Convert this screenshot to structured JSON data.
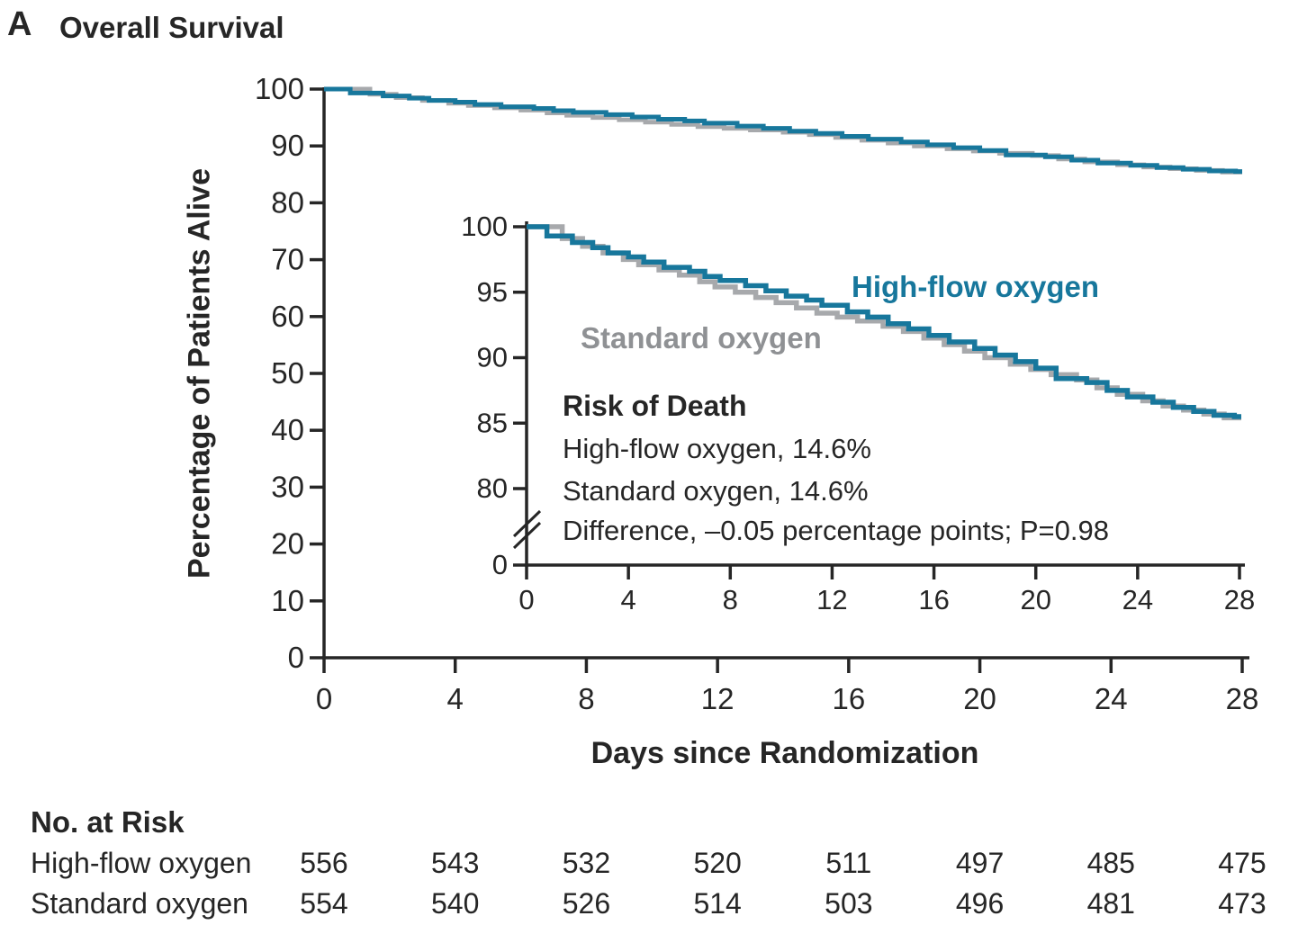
{
  "panel": {
    "letter": "A",
    "title": "Overall Survival"
  },
  "legend": {
    "high_flow": "High-flow oxygen",
    "standard": "Standard oxygen"
  },
  "annotations": {
    "risk_heading": "Risk of Death",
    "risk_lines": [
      "High-flow oxygen, 14.6%",
      "Standard oxygen, 14.6%",
      "Difference, –0.05 percentage points; P=0.98"
    ]
  },
  "at_risk": {
    "heading": "No. at Risk",
    "rows": [
      {
        "label": "High-flow oxygen",
        "values": [
          556,
          543,
          532,
          520,
          511,
          497,
          485,
          475
        ]
      },
      {
        "label": "Standard oxygen",
        "values": [
          554,
          540,
          526,
          514,
          503,
          496,
          481,
          473
        ]
      }
    ]
  },
  "colors": {
    "high_flow": "#17779C",
    "standard_line": "#A7A9AC",
    "standard_label": "#8F9194",
    "ink": "#262626"
  },
  "chart_data": {
    "type": "line",
    "step": true,
    "title": "Overall Survival",
    "xlabel": "Days since Randomization",
    "ylabel": "Percentage of Patients Alive",
    "xlim": [
      0,
      28
    ],
    "main_ylim": [
      0,
      100
    ],
    "x_ticks": [
      0,
      4,
      8,
      12,
      16,
      20,
      24,
      28
    ],
    "main_y_ticks": [
      0,
      10,
      20,
      30,
      40,
      50,
      60,
      70,
      80,
      90,
      100
    ],
    "inset_y_ticks": [
      100,
      95,
      90,
      85,
      80,
      0
    ],
    "inset_zoom_range": [
      80,
      100
    ],
    "inset_axis_break": true,
    "grid": false,
    "legend_position": "inline-labels",
    "series": [
      {
        "name": "High-flow oxygen",
        "color": "#17779C",
        "x": [
          0,
          0.8,
          1.8,
          2.6,
          3.2,
          4.0,
          4.6,
          5.4,
          6.4,
          7.0,
          7.6,
          8.6,
          9.4,
          10.2,
          11.0,
          11.6,
          12.6,
          13.4,
          14.2,
          15.0,
          15.8,
          16.6,
          17.6,
          18.4,
          19.2,
          20.0,
          20.8,
          22.0,
          22.8,
          23.6,
          24.6,
          25.4,
          26.2,
          27.0,
          27.8
        ],
        "y": [
          100,
          99.3,
          98.8,
          98.4,
          98.0,
          97.7,
          97.3,
          96.9,
          96.6,
          96.2,
          95.9,
          95.5,
          95.1,
          94.7,
          94.4,
          94.0,
          93.5,
          93.1,
          92.6,
          92.2,
          91.7,
          91.2,
          90.7,
          90.2,
          89.7,
          89.2,
          88.4,
          88.1,
          87.5,
          87.0,
          86.6,
          86.2,
          85.9,
          85.6,
          85.5
        ],
        "final_risk_of_death_pct": 14.6
      },
      {
        "name": "Standard oxygen",
        "color": "#A7A9AC",
        "x": [
          0,
          1.4,
          2.2,
          3.0,
          3.8,
          4.4,
          5.2,
          6.0,
          6.8,
          7.4,
          8.2,
          9.0,
          9.8,
          10.6,
          11.4,
          12.2,
          13.0,
          14.0,
          14.8,
          15.6,
          16.4,
          17.2,
          18.0,
          19.0,
          19.8,
          20.6,
          21.6,
          22.4,
          23.2,
          24.2,
          25.0,
          25.8,
          26.6,
          27.4
        ],
        "y": [
          100,
          99.1,
          98.5,
          98.0,
          97.5,
          97.1,
          96.7,
          96.3,
          95.8,
          95.4,
          95.0,
          94.6,
          94.2,
          93.8,
          93.4,
          93.1,
          92.8,
          92.4,
          92.0,
          91.5,
          91.0,
          90.5,
          90.0,
          89.5,
          89.1,
          88.7,
          88.3,
          87.7,
          87.2,
          86.7,
          86.3,
          86.0,
          85.7,
          85.4
        ],
        "final_risk_of_death_pct": 14.6
      }
    ]
  }
}
